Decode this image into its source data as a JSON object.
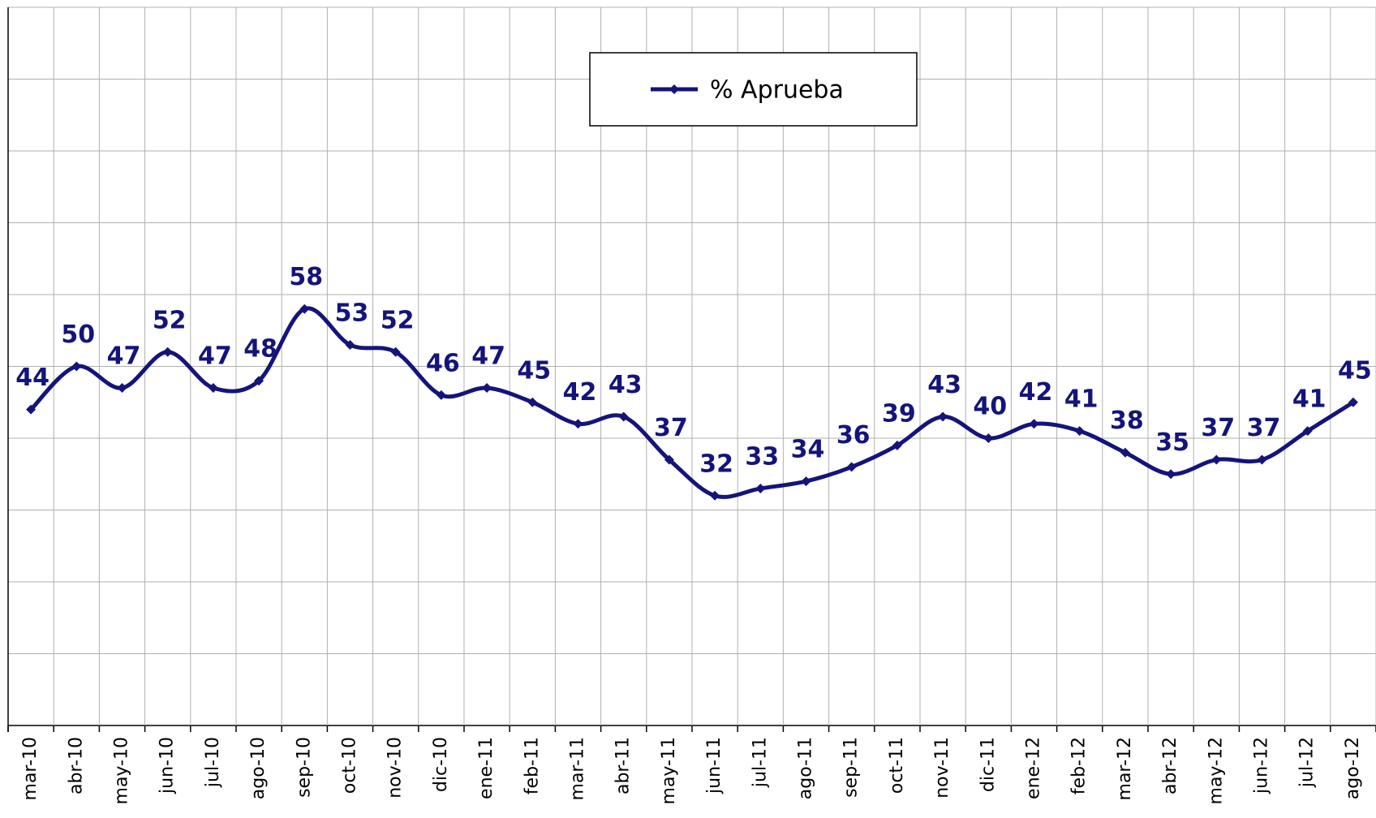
{
  "chart_data": {
    "type": "line",
    "categories": [
      "mar-10",
      "abr-10",
      "may-10",
      "jun-10",
      "jul-10",
      "ago-10",
      "sep-10",
      "oct-10",
      "nov-10",
      "dic-10",
      "ene-11",
      "feb-11",
      "mar-11",
      "abr-11",
      "may-11",
      "jun-11",
      "jul-11",
      "ago-11",
      "sep-11",
      "oct-11",
      "nov-11",
      "dic-11",
      "ene-12",
      "feb-12",
      "mar-12",
      "abr-12",
      "may-12",
      "jun-12",
      "jul-12",
      "ago-12"
    ],
    "series": [
      {
        "name": "% Aprueba",
        "color": "#14147a",
        "values": [
          44,
          50,
          47,
          52,
          47,
          48,
          58,
          53,
          52,
          46,
          47,
          45,
          42,
          43,
          37,
          32,
          33,
          34,
          36,
          39,
          43,
          40,
          42,
          41,
          38,
          35,
          37,
          37,
          41,
          45
        ]
      }
    ],
    "ylim": [
      0,
      100
    ],
    "yticks": [
      0,
      10,
      20,
      30,
      40,
      50,
      60,
      70,
      80,
      90,
      100
    ],
    "grid": true,
    "smooth": true,
    "legend": "top"
  }
}
